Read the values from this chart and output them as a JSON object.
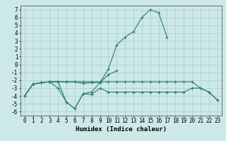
{
  "title": "",
  "xlabel": "Humidex (Indice chaleur)",
  "x": [
    0,
    1,
    2,
    3,
    4,
    5,
    6,
    7,
    8,
    9,
    10,
    11,
    12,
    13,
    14,
    15,
    16,
    17,
    18,
    19,
    20,
    21,
    22,
    23
  ],
  "line1": [
    -4.0,
    -2.5,
    -2.3,
    -2.2,
    -2.2,
    -4.8,
    -5.6,
    -3.7,
    -3.5,
    -2.3,
    -0.6,
    2.5,
    3.5,
    4.2,
    6.0,
    7.0,
    6.6,
    3.5,
    null,
    null,
    null,
    null,
    null,
    null
  ],
  "line2": [
    -4.0,
    -2.5,
    -2.3,
    -2.2,
    -2.2,
    -2.2,
    -2.2,
    -2.4,
    -2.3,
    -2.3,
    -1.3,
    -0.8,
    null,
    null,
    null,
    null,
    null,
    null,
    null,
    null,
    null,
    null,
    null,
    null
  ],
  "line3": [
    -4.0,
    -2.5,
    -2.3,
    -2.2,
    -3.0,
    -4.8,
    -5.6,
    -3.7,
    -3.8,
    -3.0,
    -3.5,
    -3.5,
    -3.5,
    -3.5,
    -3.5,
    -3.5,
    -3.5,
    -3.5,
    -3.5,
    -3.5,
    -3.0,
    -3.0,
    -3.5,
    -4.5
  ],
  "line4": [
    -4.0,
    -2.5,
    -2.3,
    -2.2,
    -2.2,
    -2.2,
    -2.2,
    -2.2,
    -2.2,
    -2.2,
    -2.2,
    -2.2,
    -2.2,
    -2.2,
    -2.2,
    -2.2,
    -2.2,
    -2.2,
    -2.2,
    -2.2,
    -2.2,
    -3.0,
    -3.5,
    -4.5
  ],
  "xlim": [
    -0.5,
    23.5
  ],
  "ylim": [
    -6.5,
    7.5
  ],
  "yticks": [
    -6,
    -5,
    -4,
    -3,
    -2,
    -1,
    0,
    1,
    2,
    3,
    4,
    5,
    6,
    7
  ],
  "xticks": [
    0,
    1,
    2,
    3,
    4,
    5,
    6,
    7,
    8,
    9,
    10,
    11,
    12,
    13,
    14,
    15,
    16,
    17,
    18,
    19,
    20,
    21,
    22,
    23
  ],
  "line_color": "#2a7d6e",
  "bg_color": "#cce8e8",
  "grid_color": "#aacccc",
  "tick_fontsize": 5.5,
  "xlabel_fontsize": 6.5,
  "linewidth": 0.8,
  "markersize": 3
}
